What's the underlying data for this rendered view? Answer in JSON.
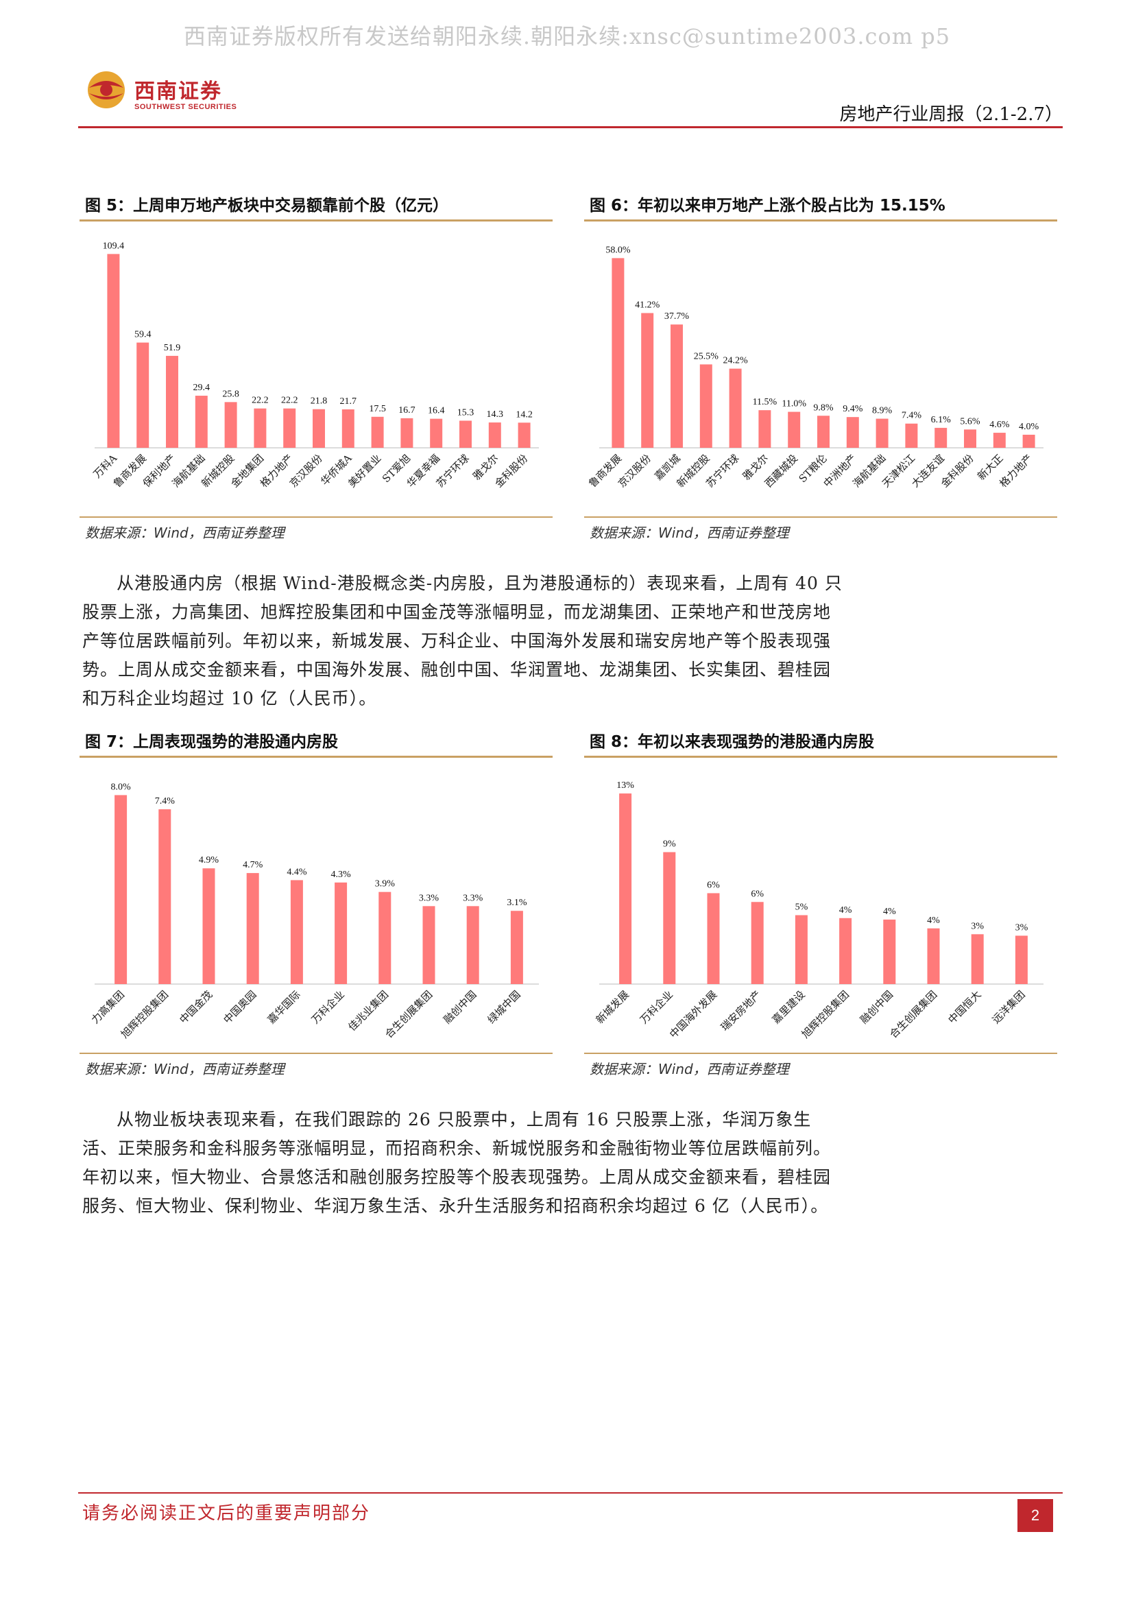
{
  "watermark": "西南证券版权所有发送给朝阳永续.朝阳永续:xnsc@suntime2003.com p5",
  "header": {
    "logo_cn": "西南证券",
    "logo_en": "SOUTHWEST SECURITIES",
    "report_title": "房地产行业周报（2.1-2.7）"
  },
  "figures": [
    {
      "title": "图 5：上周申万地产板块中交易额靠前个股（亿元）",
      "source": "数据来源：Wind，西南证券整理",
      "chart_data": {
        "type": "bar",
        "categories": [
          "万科A",
          "鲁商发展",
          "保利地产",
          "海航基础",
          "新城控股",
          "金地集团",
          "格力地产",
          "京汉股份",
          "华侨城A",
          "美好置业",
          "ST爱旭",
          "华夏幸福",
          "苏宁环球",
          "雅戈尔",
          "金科股份"
        ],
        "values": [
          109.4,
          59.4,
          51.9,
          29.4,
          25.8,
          22.2,
          22.2,
          21.8,
          21.7,
          17.5,
          16.7,
          16.4,
          15.3,
          14.3,
          14.2
        ],
        "labels": [
          "109.4",
          "59.4",
          "51.9",
          "29.4",
          "25.8",
          "22.2",
          "22.2",
          "21.8",
          "21.7",
          "17.5",
          "16.7",
          "16.4",
          "15.3",
          "14.3",
          "14.2"
        ],
        "ylim": [
          0,
          120
        ],
        "color": "#ff7a7a"
      }
    },
    {
      "title": "图 6：年初以来申万地产上涨个股占比为 15.15%",
      "source": "数据来源：Wind，西南证券整理",
      "chart_data": {
        "type": "bar",
        "categories": [
          "鲁商发展",
          "京汉股份",
          "嘉凯城",
          "新城控股",
          "苏宁环球",
          "雅戈尔",
          "西藏城投",
          "ST粮伦",
          "中洲地产",
          "海航基础",
          "天津松江",
          "大连友谊",
          "金科股份",
          "新大正",
          "格力地产"
        ],
        "values": [
          58.0,
          41.2,
          37.7,
          25.5,
          24.2,
          11.5,
          11.0,
          9.8,
          9.4,
          8.9,
          7.4,
          6.1,
          5.6,
          4.6,
          4.0
        ],
        "labels": [
          "58.0%",
          "41.2%",
          "37.7%",
          "25.5%",
          "24.2%",
          "11.5%",
          "11.0%",
          "9.8%",
          "9.4%",
          "8.9%",
          "7.4%",
          "6.1%",
          "5.6%",
          "4.6%",
          "4.0%"
        ],
        "ylim": [
          0,
          65
        ],
        "color": "#ff7a7a"
      }
    },
    {
      "title": "图 7：上周表现强势的港股通内房股",
      "source": "数据来源：Wind，西南证券整理",
      "chart_data": {
        "type": "bar",
        "categories": [
          "力高集团",
          "旭辉控股集团",
          "中国金茂",
          "中国奥园",
          "嘉华国际",
          "万科企业",
          "佳兆业集团",
          "合生创展集团",
          "融创中国",
          "绿城中国"
        ],
        "values": [
          8.0,
          7.4,
          4.9,
          4.7,
          4.4,
          4.3,
          3.9,
          3.3,
          3.3,
          3.1
        ],
        "labels": [
          "8.0%",
          "7.4%",
          "4.9%",
          "4.7%",
          "4.4%",
          "4.3%",
          "3.9%",
          "3.3%",
          "3.3%",
          "3.1%"
        ],
        "ylim": [
          0,
          9
        ],
        "color": "#ff7a7a"
      }
    },
    {
      "title": "图 8：年初以来表现强势的港股通内房股",
      "source": "数据来源：Wind，西南证券整理",
      "chart_data": {
        "type": "bar",
        "categories": [
          "新城发展",
          "万科企业",
          "中国海外发展",
          "瑞安房地产",
          "嘉里建设",
          "旭辉控股集团",
          "融创中国",
          "合生创展集团",
          "中国恒大",
          "远洋集团"
        ],
        "values": [
          13,
          9,
          6.2,
          5.6,
          4.7,
          4.5,
          4.4,
          3.8,
          3.4,
          3.3
        ],
        "labels": [
          "13%",
          "9%",
          "6%",
          "6%",
          "5%",
          "4%",
          "4%",
          "4%",
          "3%",
          "3%"
        ],
        "ylim": [
          0,
          14.5
        ],
        "color": "#ff7a7a"
      }
    }
  ],
  "paragraphs": [
    "从港股通内房（根据 Wind-港股概念类-内房股，且为港股通标的）表现来看，上周有 40 只股票上涨，力高集团、旭辉控股集团和中国金茂等涨幅明显，而龙湖集团、正荣地产和世茂房地产等位居跌幅前列。年初以来，新城发展、万科企业、中国海外发展和瑞安房地产等个股表现强势。上周从成交金额来看，中国海外发展、融创中国、华润置地、龙湖集团、长实集团、碧桂园和万科企业均超过 10 亿（人民币）。",
    "从物业板块表现来看，在我们跟踪的 26 只股票中，上周有 16 只股票上涨，华润万象生活、正荣服务和金科服务等涨幅明显，而招商积余、新城悦服务和金融街物业等位居跌幅前列。年初以来，恒大物业、合景悠活和融创服务控股等个股表现强势。上周从成交金额来看，碧桂园服务、恒大物业、保利物业、华润万象生活、永升生活服务和招商积余均超过 6 亿（人民币）。"
  ],
  "footer": {
    "disclaimer": "请务必阅读正文后的重要声明部分",
    "page": "2"
  }
}
